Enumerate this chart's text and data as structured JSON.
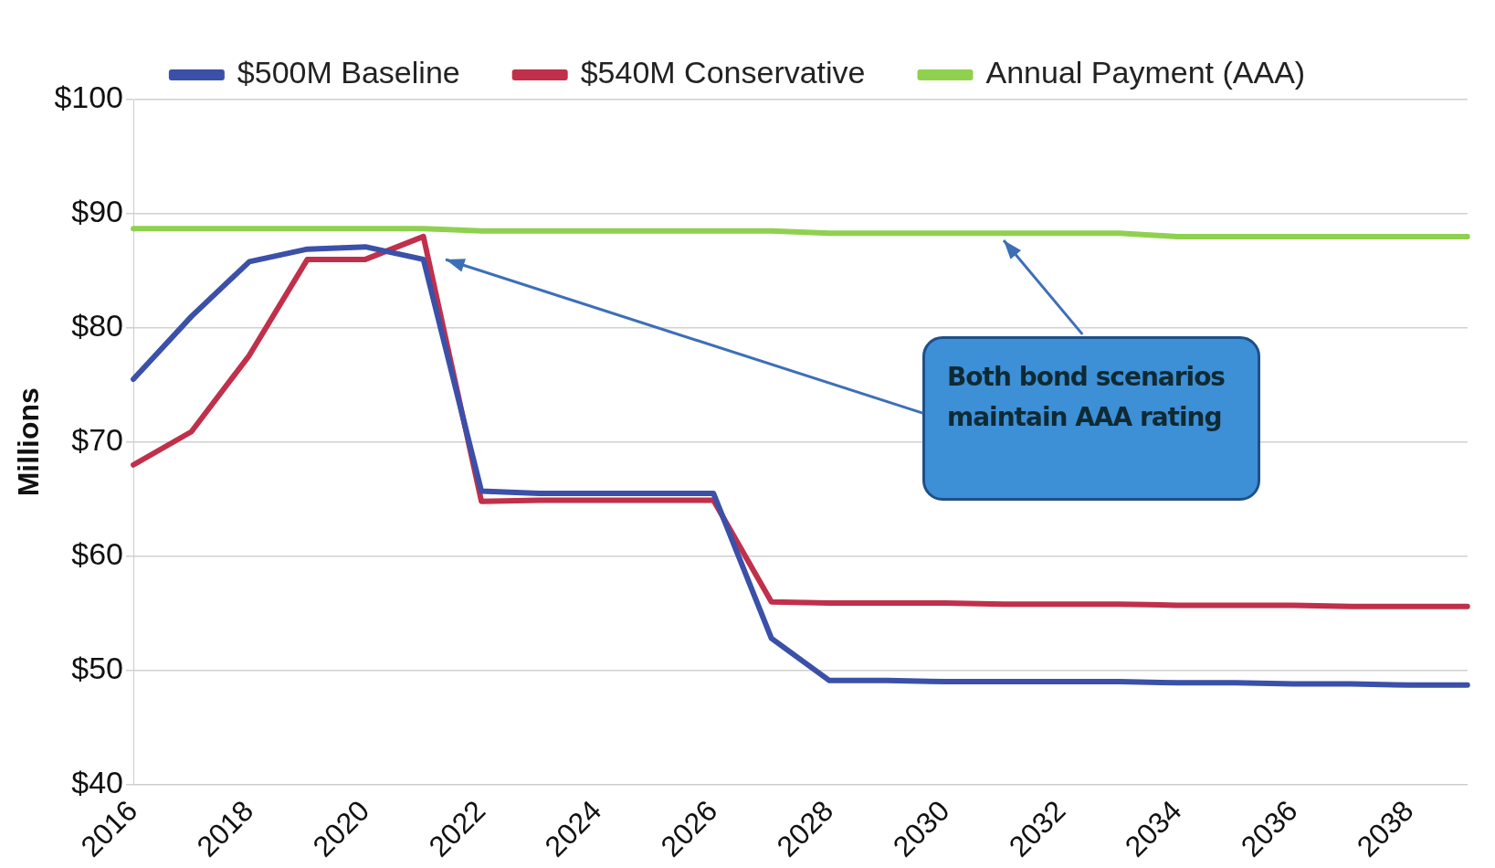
{
  "chart_data": {
    "type": "line",
    "ylabel": "Millions",
    "categories": [
      "2016",
      null,
      "2018",
      null,
      "2020",
      null,
      "2022",
      null,
      "2024",
      null,
      "2026",
      null,
      "2028",
      null,
      "2030",
      null,
      "2032",
      null,
      "2034",
      null,
      "2036",
      null,
      "2038",
      null
    ],
    "series": [
      {
        "name": "$500M Baseline",
        "color": "#3b50a8",
        "values": [
          75.5,
          81,
          85.8,
          86.9,
          87.1,
          86,
          65.7,
          65.5,
          65.5,
          65.5,
          65.5,
          52.8,
          49.1,
          49.1,
          49,
          49,
          49,
          49,
          48.9,
          48.9,
          48.8,
          48.8,
          48.7,
          48.7
        ]
      },
      {
        "name": "$540M Conservative",
        "color": "#c0304a",
        "values": [
          68,
          70.9,
          77.6,
          86,
          86,
          88,
          64.8,
          64.9,
          64.9,
          64.9,
          64.9,
          56,
          55.9,
          55.9,
          55.9,
          55.8,
          55.8,
          55.8,
          55.7,
          55.7,
          55.7,
          55.6,
          55.6,
          55.6
        ]
      },
      {
        "name": "Annual Payment (AAA)",
        "color": "#8fd14f",
        "values": [
          88.7,
          88.7,
          88.7,
          88.7,
          88.7,
          88.7,
          88.5,
          88.5,
          88.5,
          88.5,
          88.5,
          88.5,
          88.3,
          88.3,
          88.3,
          88.3,
          88.3,
          88.3,
          88,
          88,
          88,
          88,
          88,
          88
        ]
      }
    ],
    "ylim": [
      40,
      100
    ],
    "yticks": [
      {
        "value": 40,
        "label": "$40"
      },
      {
        "value": 50,
        "label": "$50"
      },
      {
        "value": 60,
        "label": "$60"
      },
      {
        "value": 70,
        "label": "$70"
      },
      {
        "value": 80,
        "label": "$80"
      },
      {
        "value": 90,
        "label": "$90"
      },
      {
        "value": 100,
        "label": "$100"
      }
    ],
    "grid": "y",
    "legend": "top",
    "marker": "none",
    "line_style": "solid",
    "annotations": [
      "Both bond scenarios maintain AAA rating"
    ]
  }
}
